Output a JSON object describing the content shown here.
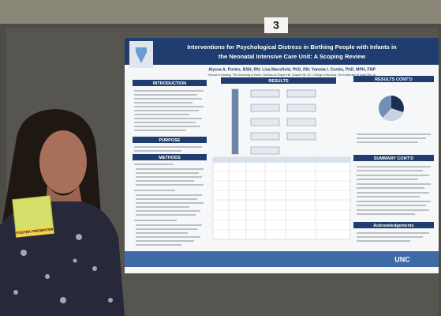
{
  "booth_number": "3",
  "badge": {
    "label": "POSTER PRESENTER"
  },
  "poster": {
    "title_lines": [
      "Interventions for Psychological Distress in Birthing People with Infants in",
      "the Neonatal Intensive Care Unit: A Scoping Review"
    ],
    "authors": "Alyssa A. Portes, BSN, RN; Lisa Mansfield, PhD, RN; Yamnia I. Cortés, PhD, MPH, FNP",
    "affiliation": "School of Nursing, The University of North Carolina at Chapel Hill, Chapel Hill, NC; College of Nursing, The University of Iowa City, IA",
    "sections": {
      "introduction": "INTRODUCTION",
      "purpose": "PURPOSE",
      "methods": "METHODS",
      "results": "RESULTS",
      "results_contd": "RESULTS CONT'D",
      "summary_contd": "SUMMARY CONT'D",
      "acknowledgements": "Acknowledgements"
    },
    "footer": "UNC"
  }
}
